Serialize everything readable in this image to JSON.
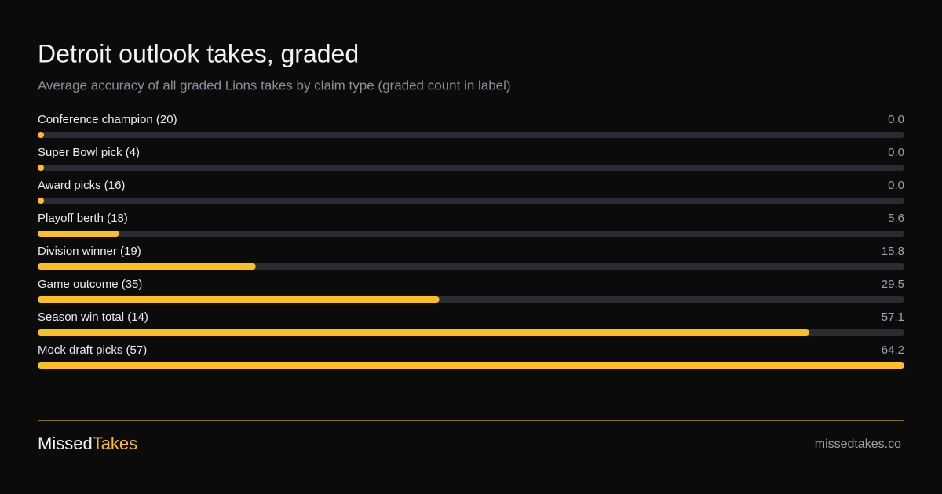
{
  "chart_data": {
    "type": "bar",
    "orientation": "horizontal",
    "title": "Detroit outlook takes, graded",
    "subtitle": "Average accuracy of all graded Lions takes by claim type (graded count in label)",
    "categories": [
      "Conference champion (20)",
      "Super Bowl pick (4)",
      "Award picks (16)",
      "Playoff berth (18)",
      "Division winner (19)",
      "Game outcome (35)",
      "Season win total (14)",
      "Mock draft picks (57)"
    ],
    "values": [
      0,
      0,
      0,
      5.6,
      15.8,
      29.5,
      57.1,
      64.2
    ],
    "value_labels": [
      "0.0",
      "0.0",
      "0.0",
      "5.6",
      "15.8",
      "29.5",
      "57.1",
      "64.2"
    ],
    "color": "#fbbf24",
    "xlim": [
      0,
      64.2
    ]
  },
  "footer": {
    "brand": [
      "Missed",
      "Takes"
    ],
    "url": "missedtakes.co"
  }
}
